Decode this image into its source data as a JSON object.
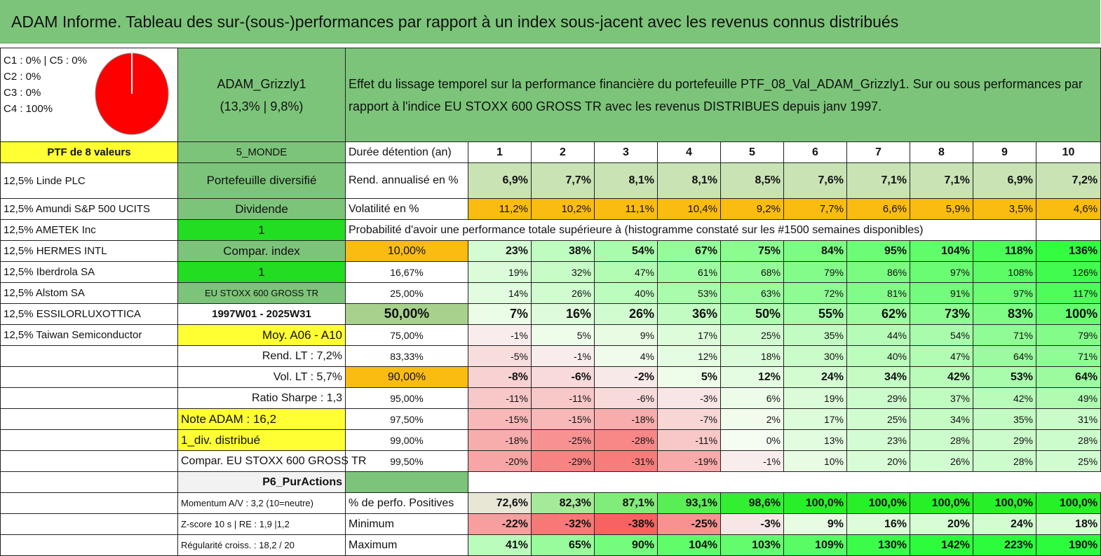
{
  "title": "ADAM Informe. Tableau des sur-(sous-)performances par rapport à un index sous-jacent avec les revenus connus distribués",
  "info": {
    "lines": [
      "C1 : 0% | C5 : 0%",
      "C2 : 0%",
      "C3 : 0%",
      "C4 : 100%"
    ],
    "pie_slices": [
      {
        "label": "C1",
        "value": 0,
        "color": "#ffffff"
      },
      {
        "label": "C2",
        "value": 0,
        "color": "#ffffff"
      },
      {
        "label": "C3",
        "value": 0,
        "color": "#ffffff"
      },
      {
        "label": "C4",
        "value": 100,
        "color": "#ff0000"
      },
      {
        "label": "C5",
        "value": 0,
        "color": "#ffffff"
      }
    ]
  },
  "fund": {
    "name": "ADAM_Grizzly1",
    "stats": "(13,3% | 9,8%)"
  },
  "description": "Effet du lissage temporel sur la performance financière du portefeuille PTF_08_Val_ADAM_Grizzly1. Sur ou sous performances par rapport à l'indice EU STOXX 600 GROSS TR avec les revenus DISTRIBUES depuis janv 1997.",
  "ptf_label": "PTF de 8 valeurs",
  "holdings": [
    "12,5% Linde PLC",
    "12,5% Amundi S&P 500 UCITS",
    "12,5% AMETEK Inc",
    "12,5% HERMES INTL",
    "12,5% Iberdrola SA",
    "12,5% Alstom SA",
    "12,5% ESSILORLUXOTTICA",
    "12,5% Taiwan Semiconductor"
  ],
  "mid": {
    "region": "5_MONDE",
    "diversified": "Portefeuille diversifié",
    "dividende": "Dividende",
    "one_a": "1",
    "compar_index": "Compar. index",
    "one_b": "1",
    "index_name": "EU STOXX 600 GROSS TR",
    "period": "1997W01 - 2025W31",
    "moy": "Moy. A06 - A10",
    "rend_lt": "Rend. LT : 7,2%",
    "vol_lt": "Vol. LT : 5,7%",
    "sharpe": "Ratio Sharpe : 1,3",
    "note": "Note ADAM : 16,2",
    "div": "1_div. distribué",
    "compar_full": "Compar. EU STOXX 600 GROSS TR",
    "p6": "P6_PurActions",
    "momentum": "Momentum A/V : 3,2 (10=neutre)",
    "zscore": "Z-score 10 s | RE : 1,9 |1,2",
    "regularite": "Régularité croiss. : 18,2 / 20"
  },
  "years_label": "Durée détention (an)",
  "years": [
    "1",
    "2",
    "3",
    "4",
    "5",
    "6",
    "7",
    "8",
    "9",
    "10"
  ],
  "rend_label": "Rend. annualisé en %",
  "rend": [
    "6,9%",
    "7,7%",
    "8,1%",
    "8,1%",
    "8,5%",
    "7,6%",
    "7,1%",
    "7,1%",
    "6,9%",
    "7,2%"
  ],
  "vol_label": "Volatilité en %",
  "vol": [
    "11,2%",
    "10,2%",
    "11,1%",
    "10,4%",
    "9,2%",
    "7,7%",
    "6,6%",
    "5,9%",
    "3,5%",
    "4,6%"
  ],
  "prob_heading": "Probabilité d'avoir une performance totale supérieure à (histogramme constaté sur les #1500 semaines disponibles)",
  "quantiles": [
    {
      "q": "10,00%",
      "v": [
        23,
        38,
        54,
        67,
        75,
        84,
        95,
        104,
        118,
        136
      ]
    },
    {
      "q": "16,67%",
      "v": [
        19,
        32,
        47,
        61,
        68,
        79,
        86,
        97,
        108,
        126
      ]
    },
    {
      "q": "25,00%",
      "v": [
        14,
        26,
        40,
        53,
        63,
        72,
        81,
        91,
        97,
        117
      ]
    },
    {
      "q": "50,00%",
      "v": [
        7,
        16,
        26,
        36,
        50,
        55,
        62,
        73,
        83,
        100
      ]
    },
    {
      "q": "75,00%",
      "v": [
        -1,
        5,
        9,
        17,
        25,
        35,
        44,
        54,
        71,
        79
      ]
    },
    {
      "q": "83,33%",
      "v": [
        -5,
        -1,
        4,
        12,
        18,
        30,
        40,
        47,
        64,
        71
      ]
    },
    {
      "q": "90,00%",
      "v": [
        -8,
        -6,
        -2,
        5,
        12,
        24,
        34,
        42,
        53,
        64
      ]
    },
    {
      "q": "95,00%",
      "v": [
        -11,
        -11,
        -6,
        -3,
        6,
        19,
        29,
        37,
        42,
        49
      ]
    },
    {
      "q": "97,50%",
      "v": [
        -15,
        -15,
        -18,
        -7,
        2,
        17,
        25,
        34,
        35,
        31
      ]
    },
    {
      "q": "99,00%",
      "v": [
        -18,
        -25,
        -28,
        -11,
        0,
        13,
        23,
        28,
        29,
        28
      ]
    },
    {
      "q": "99,50%",
      "v": [
        -20,
        -29,
        -31,
        -19,
        -1,
        10,
        20,
        26,
        28,
        25
      ]
    }
  ],
  "pos_label": "% de perfo. Positives",
  "pos": [
    72.6,
    82.3,
    87.1,
    93.1,
    98.6,
    100.0,
    100.0,
    100.0,
    100.0,
    100.0
  ],
  "min_label": "Minimum",
  "min": [
    -22,
    -32,
    -38,
    -25,
    -3,
    9,
    16,
    20,
    24,
    18
  ],
  "max_label": "Maximum",
  "max": [
    41,
    65,
    90,
    104,
    103,
    109,
    130,
    142,
    223,
    190
  ]
}
